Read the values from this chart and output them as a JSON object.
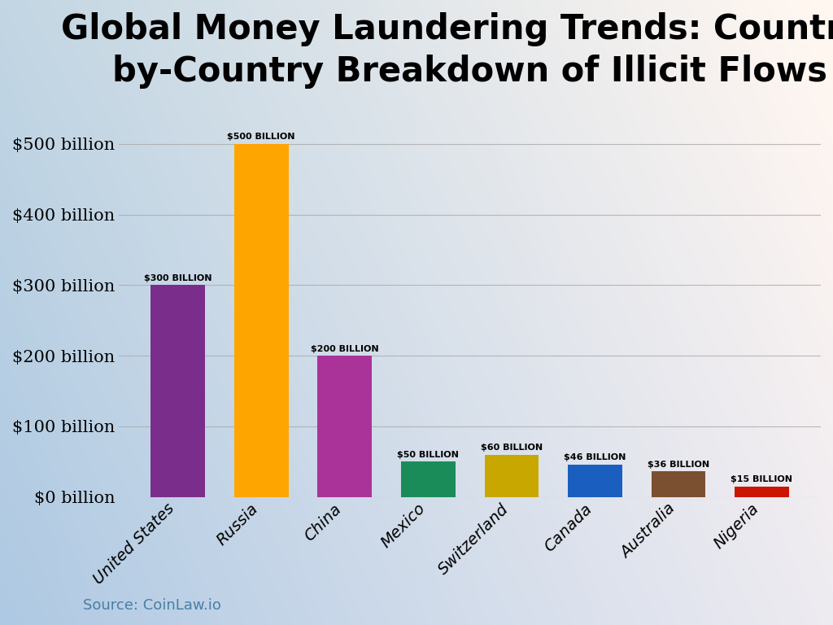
{
  "title": "Global Money Laundering Trends: Country-\nby-Country Breakdown of Illicit Flows",
  "categories": [
    "United States",
    "Russia",
    "China",
    "Mexico",
    "Switzerland",
    "Canada",
    "Australia",
    "Nigeria"
  ],
  "values": [
    300,
    500,
    200,
    50,
    60,
    46,
    36,
    15
  ],
  "bar_colors": [
    "#7B2D8B",
    "#FFA500",
    "#AA3399",
    "#1A8C5A",
    "#C8A800",
    "#1A5FBF",
    "#7B5030",
    "#CC1500"
  ],
  "label_texts": [
    "$300 BILLION",
    "$500 BILLION",
    "$200 BILLION",
    "$50 BILLION",
    "$60 BILLION",
    "$46 BILLION",
    "$36 BILLION",
    "$15 BILLION"
  ],
  "ytick_labels": [
    "$0 billion",
    "$100 billion",
    "$200 billion",
    "$300 billion",
    "$400 billion",
    "$500 billion"
  ],
  "ytick_values": [
    0,
    100,
    200,
    300,
    400,
    500
  ],
  "ylim": [
    0,
    560
  ],
  "source_text": "Source: CoinLaw.io",
  "source_color": "#4A7FA5",
  "title_fontsize": 30,
  "bar_label_fontsize": 8,
  "ytick_fontsize": 15,
  "xtick_fontsize": 14,
  "source_fontsize": 13,
  "bg_left_color": "#b8cede",
  "bg_right_color": "#f5eeea",
  "bg_top_color": "#dce8f0",
  "bg_bottom_color": "#c0d4e8"
}
